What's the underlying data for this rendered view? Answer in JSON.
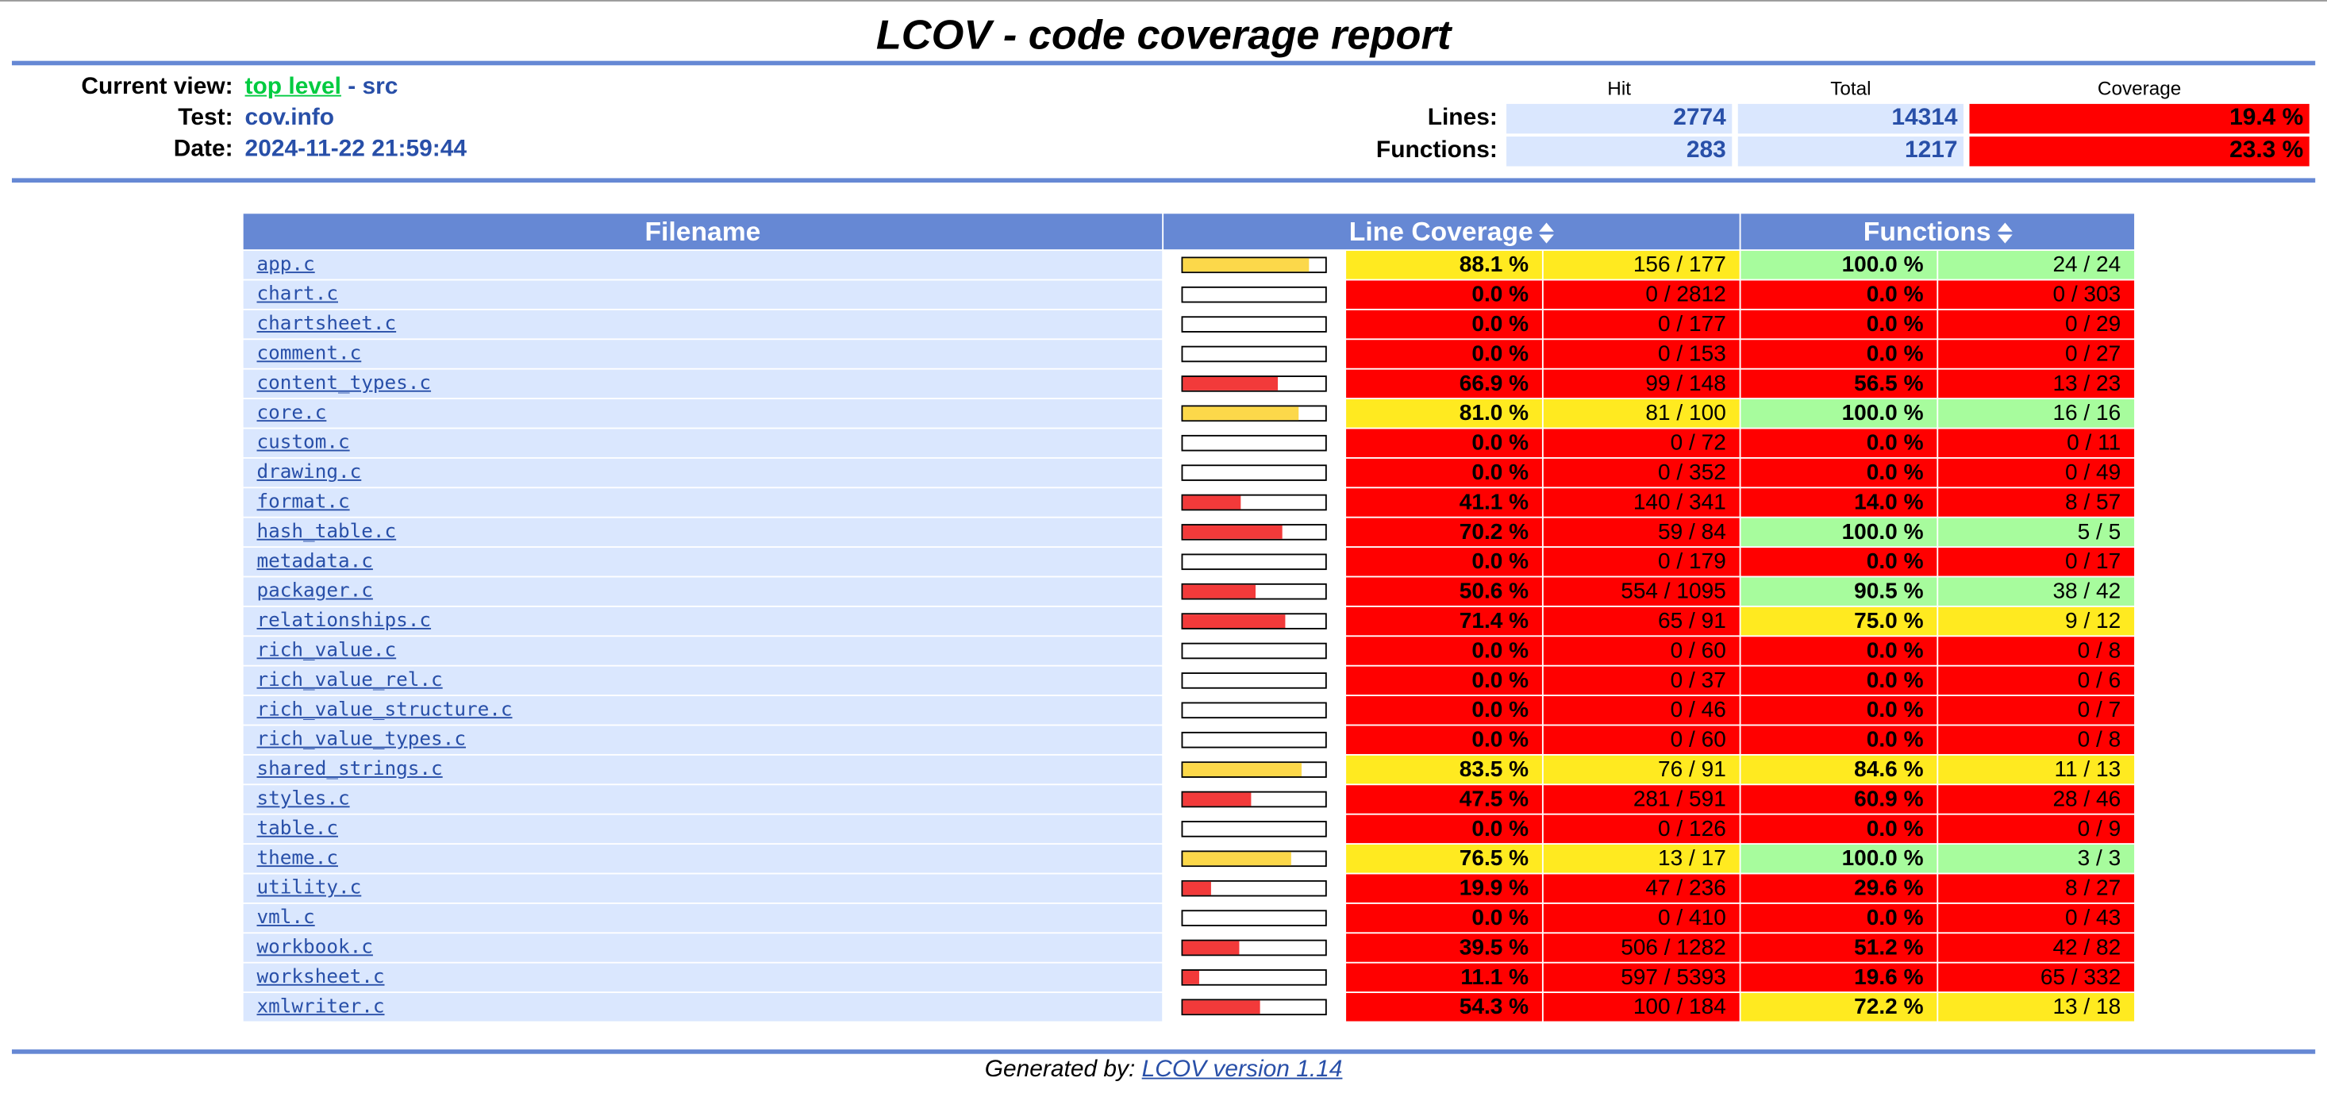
{
  "title": "LCOV - code coverage report",
  "header": {
    "current_view_label": "Current view:",
    "current_view_link": "top level",
    "current_view_sep": " - ",
    "current_view_dir": "src",
    "test_label": "Test:",
    "test_value": "cov.info",
    "date_label": "Date:",
    "date_value": "2024-11-22 21:59:44",
    "col_hit": "Hit",
    "col_total": "Total",
    "col_coverage": "Coverage",
    "lines_label": "Lines:",
    "lines_hit": "2774",
    "lines_total": "14314",
    "lines_coverage": "19.4 %",
    "functions_label": "Functions:",
    "functions_hit": "283",
    "functions_total": "1217",
    "functions_coverage": "23.3 %"
  },
  "table": {
    "col_filename": "Filename",
    "col_line_coverage": "Line Coverage",
    "col_functions": "Functions",
    "rows": [
      {
        "file": "app.c",
        "line_pct": "88.1 %",
        "line_cnt": "156 / 177",
        "line_level": "med",
        "bar": 0.881,
        "fn_pct": "100.0 %",
        "fn_cnt": "24 / 24",
        "fn_level": "hi"
      },
      {
        "file": "chart.c",
        "line_pct": "0.0 %",
        "line_cnt": "0 / 2812",
        "line_level": "lo",
        "bar": 0.0,
        "fn_pct": "0.0 %",
        "fn_cnt": "0 / 303",
        "fn_level": "lo"
      },
      {
        "file": "chartsheet.c",
        "line_pct": "0.0 %",
        "line_cnt": "0 / 177",
        "line_level": "lo",
        "bar": 0.0,
        "fn_pct": "0.0 %",
        "fn_cnt": "0 / 29",
        "fn_level": "lo"
      },
      {
        "file": "comment.c",
        "line_pct": "0.0 %",
        "line_cnt": "0 / 153",
        "line_level": "lo",
        "bar": 0.0,
        "fn_pct": "0.0 %",
        "fn_cnt": "0 / 27",
        "fn_level": "lo"
      },
      {
        "file": "content_types.c",
        "line_pct": "66.9 %",
        "line_cnt": "99 / 148",
        "line_level": "lo",
        "bar": 0.669,
        "fn_pct": "56.5 %",
        "fn_cnt": "13 / 23",
        "fn_level": "lo"
      },
      {
        "file": "core.c",
        "line_pct": "81.0 %",
        "line_cnt": "81 / 100",
        "line_level": "med",
        "bar": 0.81,
        "fn_pct": "100.0 %",
        "fn_cnt": "16 / 16",
        "fn_level": "hi"
      },
      {
        "file": "custom.c",
        "line_pct": "0.0 %",
        "line_cnt": "0 / 72",
        "line_level": "lo",
        "bar": 0.0,
        "fn_pct": "0.0 %",
        "fn_cnt": "0 / 11",
        "fn_level": "lo"
      },
      {
        "file": "drawing.c",
        "line_pct": "0.0 %",
        "line_cnt": "0 / 352",
        "line_level": "lo",
        "bar": 0.0,
        "fn_pct": "0.0 %",
        "fn_cnt": "0 / 49",
        "fn_level": "lo"
      },
      {
        "file": "format.c",
        "line_pct": "41.1 %",
        "line_cnt": "140 / 341",
        "line_level": "lo",
        "bar": 0.411,
        "fn_pct": "14.0 %",
        "fn_cnt": "8 / 57",
        "fn_level": "lo"
      },
      {
        "file": "hash_table.c",
        "line_pct": "70.2 %",
        "line_cnt": "59 / 84",
        "line_level": "lo",
        "bar": 0.702,
        "fn_pct": "100.0 %",
        "fn_cnt": "5 / 5",
        "fn_level": "hi"
      },
      {
        "file": "metadata.c",
        "line_pct": "0.0 %",
        "line_cnt": "0 / 179",
        "line_level": "lo",
        "bar": 0.0,
        "fn_pct": "0.0 %",
        "fn_cnt": "0 / 17",
        "fn_level": "lo"
      },
      {
        "file": "packager.c",
        "line_pct": "50.6 %",
        "line_cnt": "554 / 1095",
        "line_level": "lo",
        "bar": 0.506,
        "fn_pct": "90.5 %",
        "fn_cnt": "38 / 42",
        "fn_level": "hi"
      },
      {
        "file": "relationships.c",
        "line_pct": "71.4 %",
        "line_cnt": "65 / 91",
        "line_level": "lo",
        "bar": 0.714,
        "fn_pct": "75.0 %",
        "fn_cnt": "9 / 12",
        "fn_level": "med"
      },
      {
        "file": "rich_value.c",
        "line_pct": "0.0 %",
        "line_cnt": "0 / 60",
        "line_level": "lo",
        "bar": 0.0,
        "fn_pct": "0.0 %",
        "fn_cnt": "0 / 8",
        "fn_level": "lo"
      },
      {
        "file": "rich_value_rel.c",
        "line_pct": "0.0 %",
        "line_cnt": "0 / 37",
        "line_level": "lo",
        "bar": 0.0,
        "fn_pct": "0.0 %",
        "fn_cnt": "0 / 6",
        "fn_level": "lo"
      },
      {
        "file": "rich_value_structure.c",
        "line_pct": "0.0 %",
        "line_cnt": "0 / 46",
        "line_level": "lo",
        "bar": 0.0,
        "fn_pct": "0.0 %",
        "fn_cnt": "0 / 7",
        "fn_level": "lo"
      },
      {
        "file": "rich_value_types.c",
        "line_pct": "0.0 %",
        "line_cnt": "0 / 60",
        "line_level": "lo",
        "bar": 0.0,
        "fn_pct": "0.0 %",
        "fn_cnt": "0 / 8",
        "fn_level": "lo"
      },
      {
        "file": "shared_strings.c",
        "line_pct": "83.5 %",
        "line_cnt": "76 / 91",
        "line_level": "med",
        "bar": 0.835,
        "fn_pct": "84.6 %",
        "fn_cnt": "11 / 13",
        "fn_level": "med"
      },
      {
        "file": "styles.c",
        "line_pct": "47.5 %",
        "line_cnt": "281 / 591",
        "line_level": "lo",
        "bar": 0.475,
        "fn_pct": "60.9 %",
        "fn_cnt": "28 / 46",
        "fn_level": "lo"
      },
      {
        "file": "table.c",
        "line_pct": "0.0 %",
        "line_cnt": "0 / 126",
        "line_level": "lo",
        "bar": 0.0,
        "fn_pct": "0.0 %",
        "fn_cnt": "0 / 9",
        "fn_level": "lo"
      },
      {
        "file": "theme.c",
        "line_pct": "76.5 %",
        "line_cnt": "13 / 17",
        "line_level": "med",
        "bar": 0.765,
        "fn_pct": "100.0 %",
        "fn_cnt": "3 / 3",
        "fn_level": "hi"
      },
      {
        "file": "utility.c",
        "line_pct": "19.9 %",
        "line_cnt": "47 / 236",
        "line_level": "lo",
        "bar": 0.199,
        "fn_pct": "29.6 %",
        "fn_cnt": "8 / 27",
        "fn_level": "lo"
      },
      {
        "file": "vml.c",
        "line_pct": "0.0 %",
        "line_cnt": "0 / 410",
        "line_level": "lo",
        "bar": 0.0,
        "fn_pct": "0.0 %",
        "fn_cnt": "0 / 43",
        "fn_level": "lo"
      },
      {
        "file": "workbook.c",
        "line_pct": "39.5 %",
        "line_cnt": "506 / 1282",
        "line_level": "lo",
        "bar": 0.395,
        "fn_pct": "51.2 %",
        "fn_cnt": "42 / 82",
        "fn_level": "lo"
      },
      {
        "file": "worksheet.c",
        "line_pct": "11.1 %",
        "line_cnt": "597 / 5393",
        "line_level": "lo",
        "bar": 0.111,
        "fn_pct": "19.6 %",
        "fn_cnt": "65 / 332",
        "fn_level": "lo"
      },
      {
        "file": "xmlwriter.c",
        "line_pct": "54.3 %",
        "line_cnt": "100 / 184",
        "line_level": "lo",
        "bar": 0.543,
        "fn_pct": "72.2 %",
        "fn_cnt": "13 / 18",
        "fn_level": "med"
      }
    ]
  },
  "colors": {
    "lo": "#ff0000",
    "med": "#ffea20",
    "hi": "#a7fc9d",
    "bar_lo": "#f23a3a",
    "bar_med": "#fcd84a",
    "header_blue": "#6688d4",
    "cell_blue": "#dae7fe"
  },
  "footer": {
    "prefix": "Generated by: ",
    "link": "LCOV version 1.14"
  }
}
